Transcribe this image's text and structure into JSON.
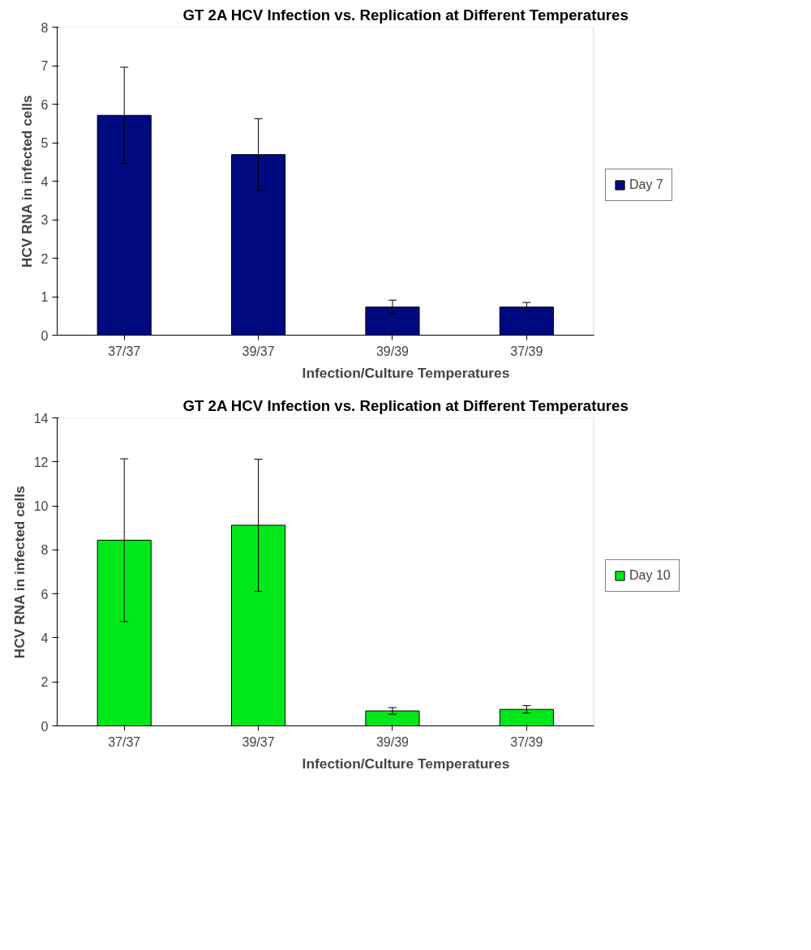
{
  "chart_data": [
    {
      "type": "bar",
      "title": "GT 2A HCV Infection vs. Replication at Different Temperatures",
      "xlabel": "Infection/Culture Temperatures",
      "ylabel": "HCV RNA in infected cells",
      "categories": [
        "37/37",
        "39/37",
        "39/39",
        "37/39"
      ],
      "series": [
        {
          "name": "Day 7",
          "color": "#000a80",
          "values": [
            5.71,
            4.69,
            0.73,
            0.73
          ],
          "errors": [
            1.25,
            0.93,
            0.18,
            0.12
          ]
        }
      ],
      "ylim": [
        0,
        8
      ],
      "yticks": [
        0,
        1,
        2,
        3,
        4,
        5,
        6,
        7,
        8
      ],
      "grid": false,
      "legend": "right"
    },
    {
      "type": "bar",
      "title": "GT 2A HCV Infection vs. Replication at Different Temperatures",
      "xlabel": "Infection/Culture Temperatures",
      "ylabel": "HCV RNA in infected cells",
      "categories": [
        "37/37",
        "39/37",
        "39/39",
        "37/39"
      ],
      "series": [
        {
          "name": "Day 10",
          "color": "#00e81a",
          "values": [
            8.44,
            9.12,
            0.68,
            0.75
          ],
          "errors": [
            3.7,
            3.0,
            0.15,
            0.17
          ]
        }
      ],
      "ylim": [
        0,
        14
      ],
      "yticks": [
        0,
        2,
        4,
        6,
        8,
        10,
        12,
        14
      ],
      "grid": false,
      "legend": "right"
    }
  ]
}
